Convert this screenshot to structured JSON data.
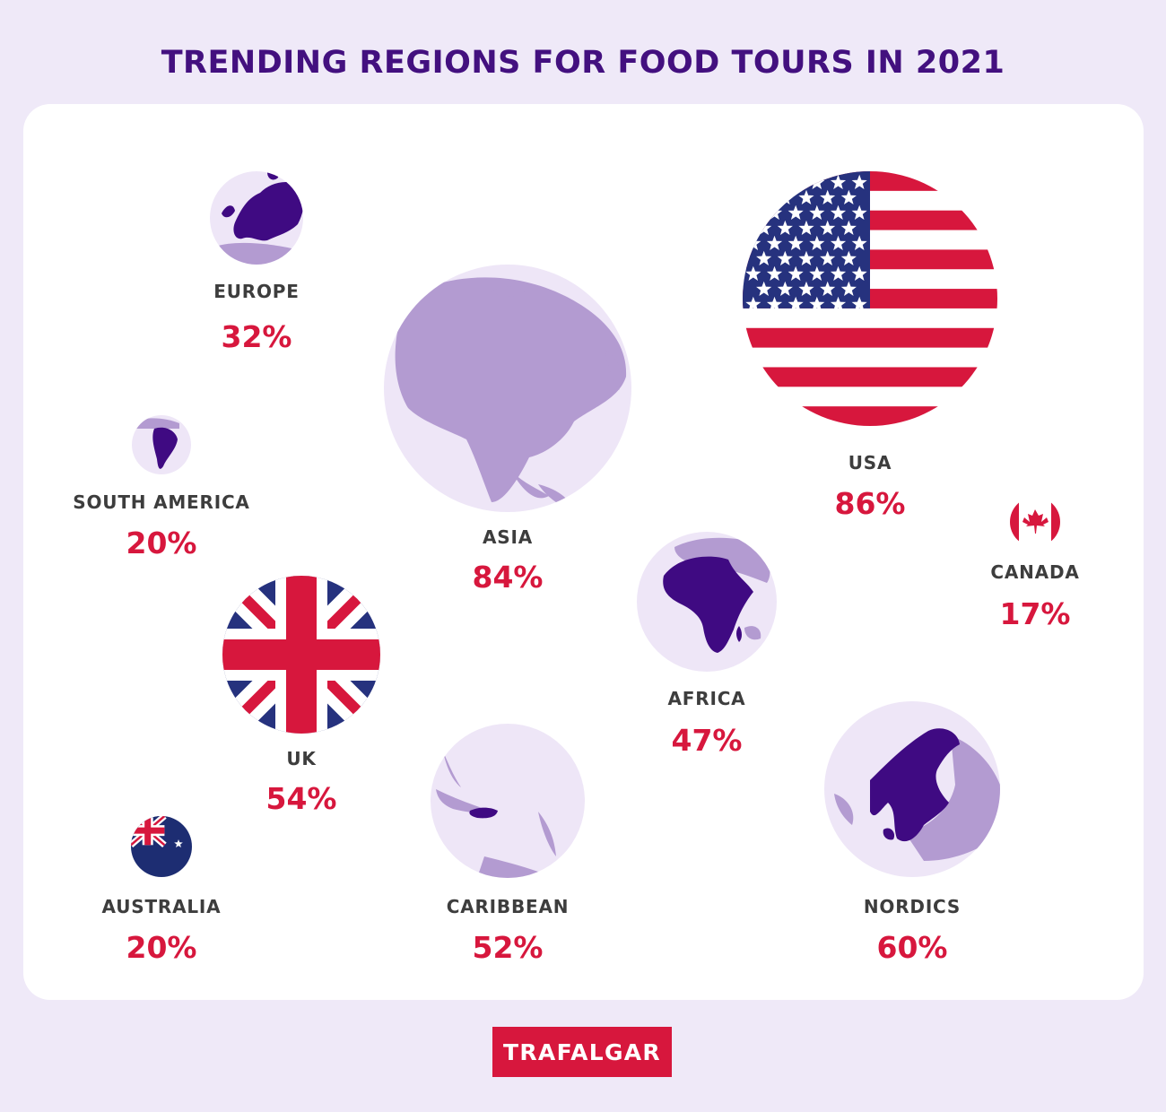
{
  "title": "TRENDING REGIONS FOR FOOD TOURS IN 2021",
  "brand": "TRAFALGAR",
  "colors": {
    "background": "#efe9f8",
    "panel": "#ffffff",
    "title": "#43107f",
    "label": "#3d3d3d",
    "percent": "#d7173d",
    "dark_purple": "#3f0a82",
    "light_purple": "#b39bd1",
    "globe_fill": "#eee6f7",
    "flag_red": "#d7173d",
    "flag_blue": "#26327e",
    "flag_navy": "#1d2d72"
  },
  "chart_data": {
    "type": "bubble",
    "title": "TRENDING REGIONS FOR FOOD TOURS IN 2021",
    "unit": "%",
    "categories": [
      "EUROPE",
      "USA",
      "SOUTH AMERICA",
      "ASIA",
      "CANADA",
      "UK",
      "AFRICA",
      "AUSTRALIA",
      "CARIBBEAN",
      "NORDICS"
    ],
    "values": [
      32,
      86,
      20,
      84,
      17,
      54,
      47,
      20,
      52,
      60
    ],
    "points": [
      {
        "name": "EUROPE",
        "value": 32,
        "label": "32%",
        "icon": "europe-map-icon"
      },
      {
        "name": "USA",
        "value": 86,
        "label": "86%",
        "icon": "usa-flag-icon"
      },
      {
        "name": "SOUTH AMERICA",
        "value": 20,
        "label": "20%",
        "icon": "south-america-map-icon"
      },
      {
        "name": "ASIA",
        "value": 84,
        "label": "84%",
        "icon": "asia-map-icon"
      },
      {
        "name": "CANADA",
        "value": 17,
        "label": "17%",
        "icon": "canada-flag-icon"
      },
      {
        "name": "UK",
        "value": 54,
        "label": "54%",
        "icon": "uk-flag-icon"
      },
      {
        "name": "AFRICA",
        "value": 47,
        "label": "47%",
        "icon": "africa-map-icon"
      },
      {
        "name": "AUSTRALIA",
        "value": 20,
        "label": "20%",
        "icon": "australia-flag-icon"
      },
      {
        "name": "CARIBBEAN",
        "value": 52,
        "label": "52%",
        "icon": "caribbean-map-icon"
      },
      {
        "name": "NORDICS",
        "value": 60,
        "label": "60%",
        "icon": "nordics-map-icon"
      }
    ]
  }
}
